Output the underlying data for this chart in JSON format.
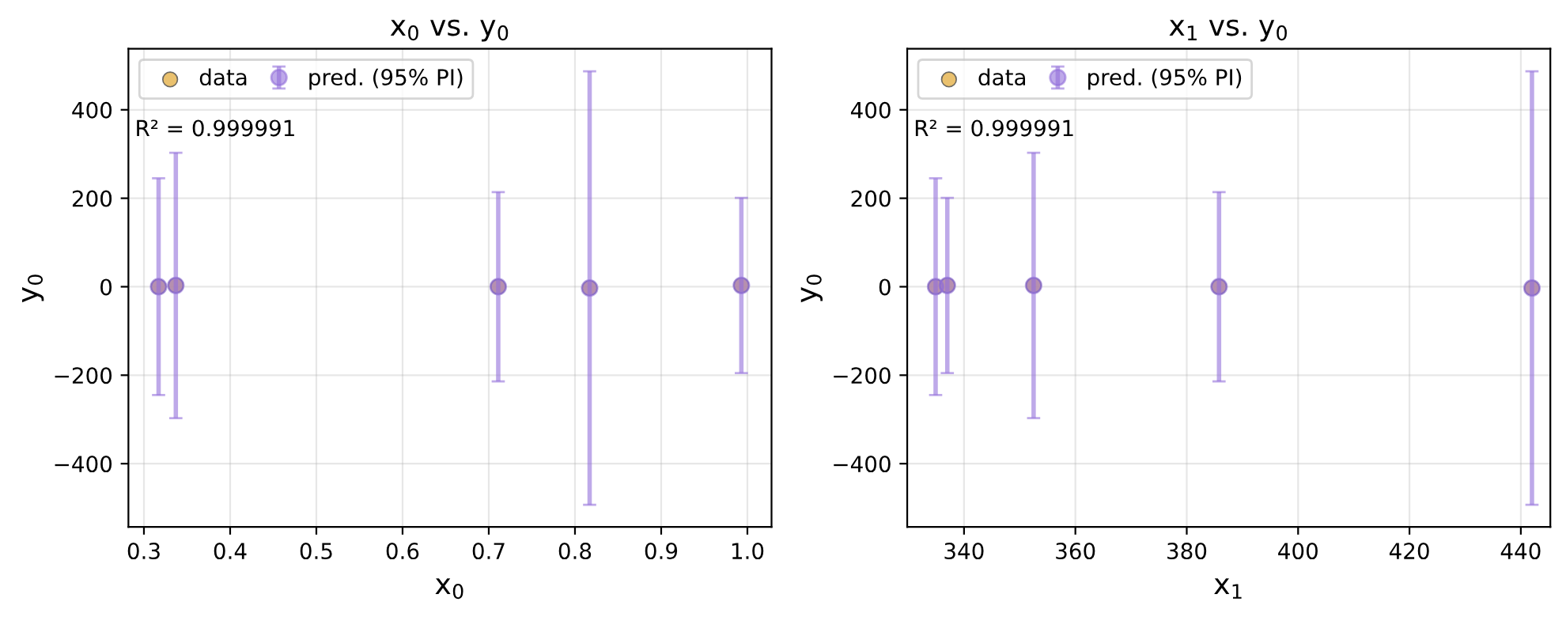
{
  "chart_data": [
    {
      "type": "scatter",
      "title": "x$_{0}$ vs. y$_{0}$",
      "xlabel": "x$_{0}$",
      "ylabel": "y$_{0}$",
      "x": [
        0.317,
        0.337,
        0.711,
        0.817,
        0.993
      ],
      "series": [
        {
          "name": "data",
          "color": "#e6b655",
          "values": [
            0,
            3,
            0,
            -3,
            3
          ]
        },
        {
          "name": "pred. (95% PI)",
          "color": "#9370db",
          "values": [
            0,
            3,
            0,
            -3,
            3
          ],
          "errors": [
            245,
            300,
            214,
            490,
            198
          ]
        }
      ],
      "xlim": [
        0.282,
        1.028
      ],
      "xticks": [
        {
          "value": 0.3,
          "label": "0.3"
        },
        {
          "value": 0.4,
          "label": "0.4"
        },
        {
          "value": 0.5,
          "label": "0.5"
        },
        {
          "value": 0.6,
          "label": "0.6"
        },
        {
          "value": 0.7,
          "label": "0.7"
        },
        {
          "value": 0.8,
          "label": "0.8"
        },
        {
          "value": 0.9,
          "label": "0.9"
        },
        {
          "value": 1.0,
          "label": "1.0"
        }
      ],
      "ylim": [
        -543,
        538
      ],
      "yticks": [
        -400,
        -200,
        0,
        200,
        400
      ],
      "annotations": [
        "R² = 0.999991"
      ],
      "grid": true,
      "legend": "top left",
      "marker": "circle"
    },
    {
      "type": "scatter",
      "title": "x$_{1}$ vs. y$_{0}$",
      "xlabel": "x$_{1}$",
      "ylabel": "y$_{0}$",
      "x": [
        334.9,
        337.0,
        352.5,
        385.8,
        442.0
      ],
      "series": [
        {
          "name": "data",
          "color": "#e6b655",
          "values": [
            0,
            3,
            3,
            0,
            -3
          ]
        },
        {
          "name": "pred. (95% PI)",
          "color": "#9370db",
          "values": [
            0,
            3,
            3,
            0,
            -3
          ],
          "errors": [
            245,
            198,
            300,
            214,
            490
          ]
        }
      ],
      "xlim": [
        329.8,
        445.3
      ],
      "xticks": [
        340,
        360,
        380,
        400,
        420,
        440
      ],
      "ylim": [
        -543,
        538
      ],
      "yticks": [
        -400,
        -200,
        0,
        200,
        400
      ],
      "annotations": [
        "R² = 0.999991"
      ],
      "grid": true,
      "legend": "top left",
      "marker": "circle"
    }
  ]
}
